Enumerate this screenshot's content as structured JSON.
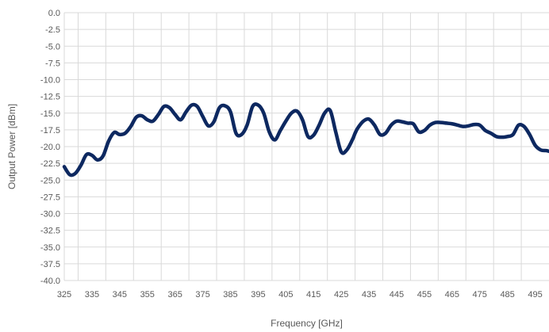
{
  "chart_data": {
    "type": "line",
    "title": "",
    "xlabel": "Frequency [GHz]",
    "ylabel": "Output Power [dBm]",
    "xlim": [
      325,
      500
    ],
    "ylim": [
      -40,
      0
    ],
    "x_ticks": [
      325,
      335,
      345,
      355,
      365,
      375,
      385,
      395,
      405,
      415,
      425,
      435,
      445,
      455,
      465,
      475,
      485,
      495
    ],
    "y_ticks": [
      0.0,
      -2.5,
      -5.0,
      -7.5,
      -10.0,
      -12.5,
      -15.0,
      -17.5,
      -20.0,
      -22.5,
      -25.0,
      -27.5,
      -30.0,
      -32.5,
      -35.0,
      -37.5,
      -40.0
    ],
    "y_tick_labels": [
      "0.0",
      "-2.5",
      "-5.0",
      "-7.5",
      "-10.0",
      "-12.5",
      "-15.0",
      "-17.5",
      "-20.0",
      "-22.5",
      "-25.0",
      "-27.5",
      "-30.0",
      "-32.5",
      "-35.0",
      "-37.5",
      "-40.0"
    ],
    "grid": true,
    "legend": "none",
    "series": [
      {
        "color": "#0d2860",
        "x": [
          325,
          327,
          329,
          331,
          333,
          335,
          337,
          339,
          341,
          343,
          345,
          347,
          349,
          351,
          353,
          355,
          357,
          359,
          361,
          363,
          365,
          367,
          369,
          371,
          373,
          375,
          377,
          379,
          381,
          383,
          385,
          387,
          389,
          391,
          393,
          395,
          397,
          399,
          401,
          403,
          405,
          407,
          409,
          411,
          413,
          415,
          417,
          419,
          421,
          423,
          425,
          427,
          429,
          430,
          431,
          433,
          435,
          437,
          439,
          441,
          443,
          445,
          447,
          449,
          451,
          453,
          455,
          457,
          459,
          461,
          463,
          465,
          467,
          469,
          471,
          473,
          475,
          477,
          479,
          481,
          483,
          485,
          487,
          489,
          491,
          493,
          495,
          497,
          499,
          500
        ],
        "y": [
          -23.0,
          -24.2,
          -24.0,
          -22.8,
          -21.2,
          -21.3,
          -22.0,
          -21.4,
          -19.2,
          -17.9,
          -18.2,
          -18.0,
          -17.0,
          -15.6,
          -15.4,
          -16.0,
          -16.2,
          -15.2,
          -14.0,
          -14.2,
          -15.2,
          -16.0,
          -14.8,
          -13.8,
          -14.0,
          -15.5,
          -16.9,
          -16.3,
          -14.2,
          -13.9,
          -14.8,
          -18.0,
          -18.2,
          -16.8,
          -14.0,
          -13.8,
          -15.0,
          -17.8,
          -19.0,
          -17.6,
          -16.2,
          -15.0,
          -14.7,
          -16.0,
          -18.5,
          -18.3,
          -16.8,
          -15.0,
          -14.6,
          -17.8,
          -20.8,
          -20.5,
          -19.0,
          -18.0,
          -17.2,
          -16.2,
          -15.9,
          -16.8,
          -18.2,
          -18.0,
          -16.8,
          -16.2,
          -16.3,
          -16.5,
          -16.6,
          -17.8,
          -17.6,
          -16.8,
          -16.4,
          -16.4,
          -16.5,
          -16.6,
          -16.8,
          -17.0,
          -16.9,
          -16.7,
          -16.8,
          -17.6,
          -18.0,
          -18.5,
          -18.6,
          -18.5,
          -18.2,
          -16.8,
          -17.0,
          -18.2,
          -19.8,
          -20.5,
          -20.6,
          -20.7
        ]
      }
    ]
  }
}
